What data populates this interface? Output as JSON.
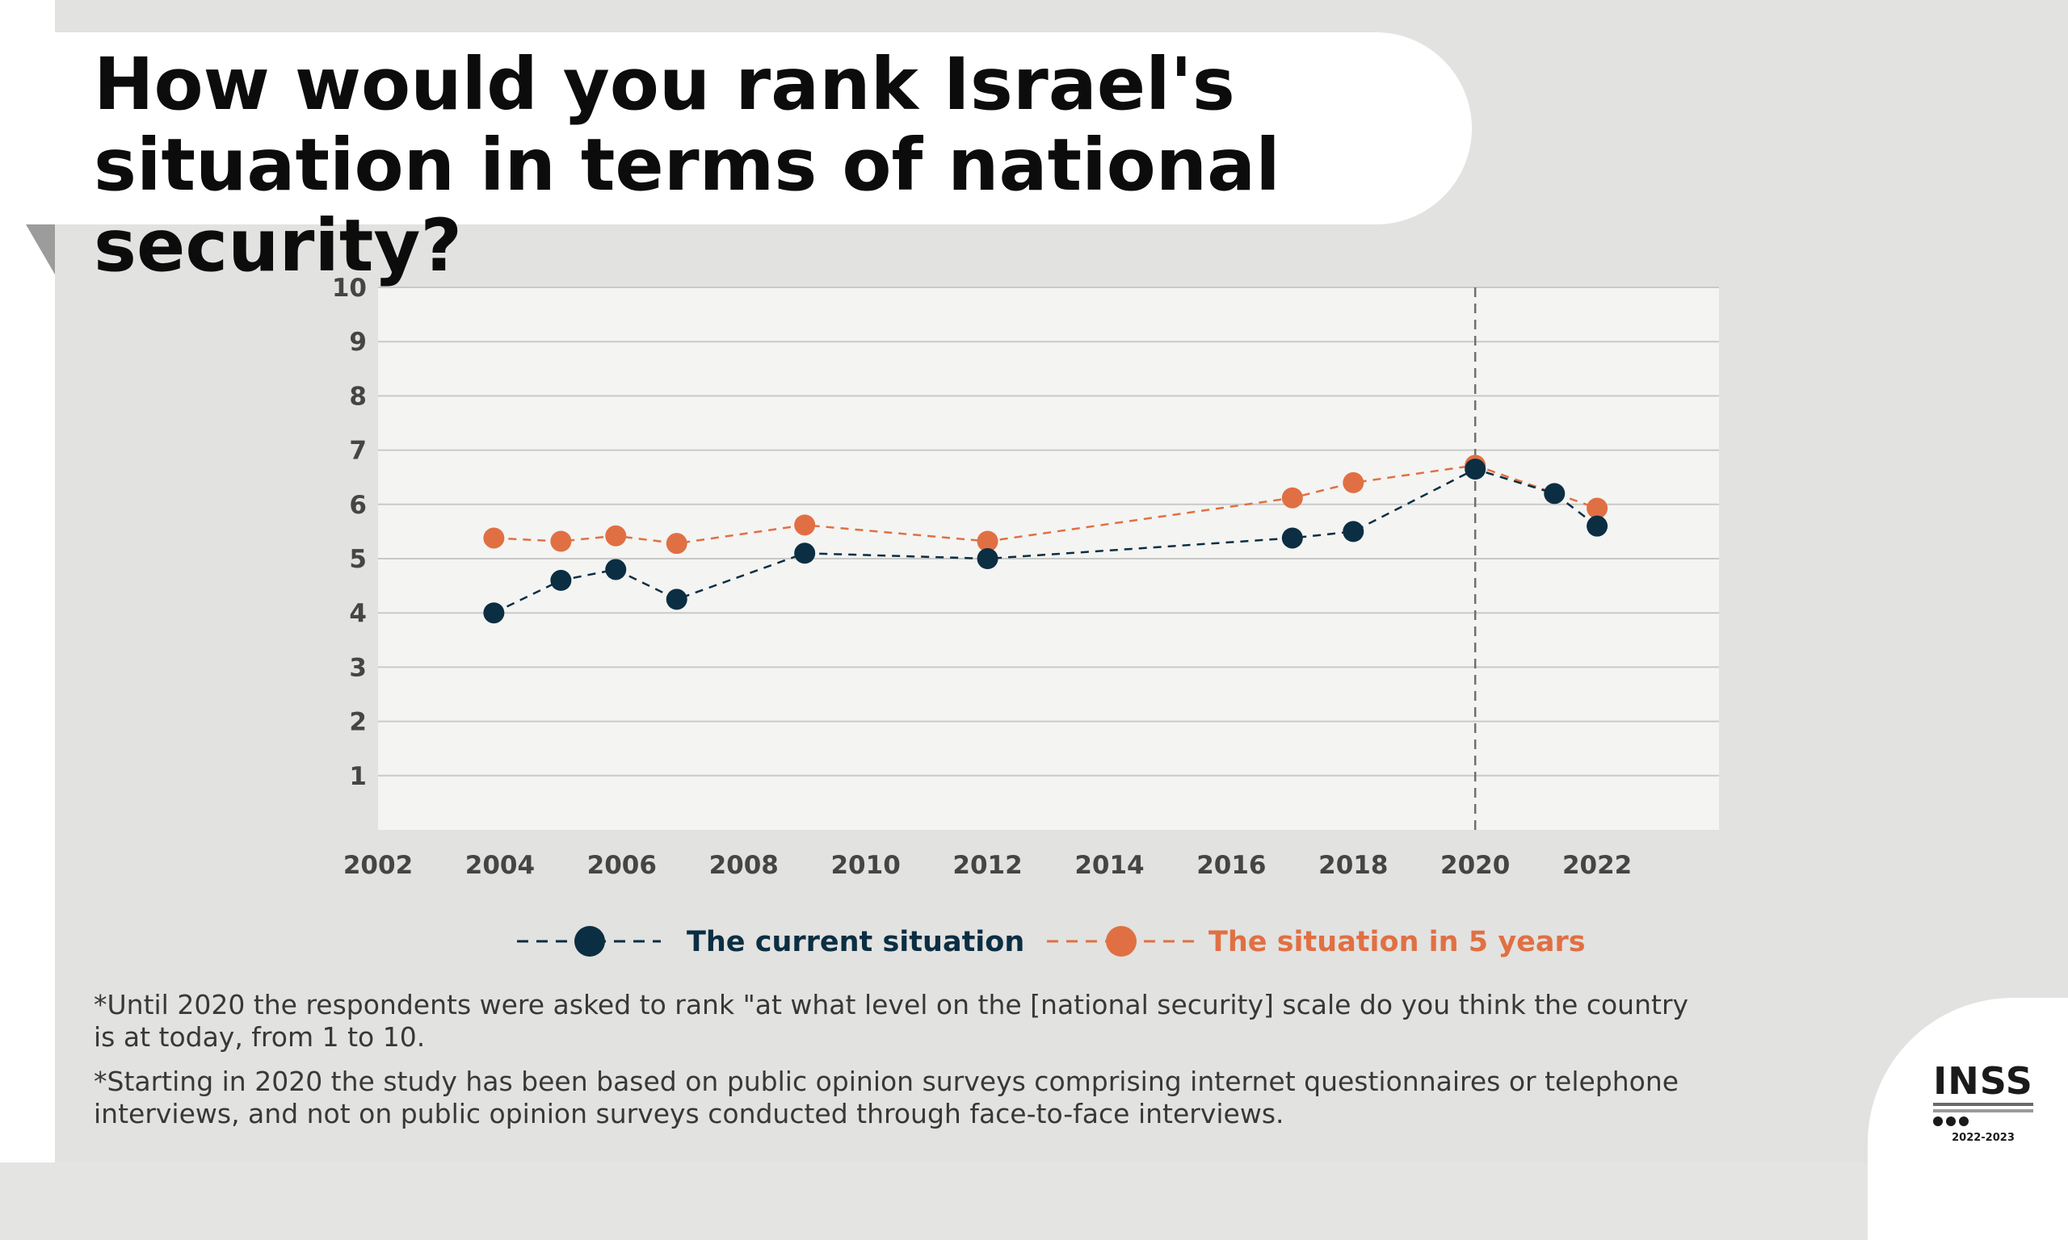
{
  "title": "How would you rank Israel's situation in terms of national security?",
  "notes": [
    "*Until 2020 the respondents were asked to rank \"at what level on the [national security] scale do you think the country is at today, from 1 to 10.",
    "*Starting in 2020 the study has been based on public opinion surveys comprising internet questionnaires or telephone interviews, and not on   public opinion surveys conducted through face-to-face interviews."
  ],
  "logo": {
    "name": "INSS",
    "years": "2022-2023"
  },
  "colors": {
    "current": "#0b2e43",
    "future": "#e07043",
    "marker_line": "#707070"
  },
  "chart_data": {
    "type": "line",
    "title": "How would you rank Israel's situation in terms of national security?",
    "xlabel": "",
    "ylabel": "",
    "xlim": [
      2002,
      2024
    ],
    "ylim": [
      0,
      10
    ],
    "x_ticks": [
      2002,
      2004,
      2006,
      2008,
      2010,
      2012,
      2014,
      2016,
      2018,
      2020,
      2022
    ],
    "y_ticks": [
      1,
      2,
      3,
      4,
      5,
      6,
      7,
      8,
      9,
      10
    ],
    "grid": true,
    "line_style": "dashed",
    "legend_position": "bottom",
    "vertical_marker_x": 2020,
    "series": [
      {
        "name": "The current situation",
        "color": "#0b2e43",
        "x": [
          2003.9,
          2005.0,
          2005.9,
          2006.9,
          2009.0,
          2012.0,
          2017.0,
          2018.0,
          2020.0,
          2021.3,
          2022.0
        ],
        "y": [
          4.0,
          4.6,
          4.8,
          4.25,
          5.1,
          5.0,
          5.38,
          5.5,
          6.65,
          6.2,
          5.6
        ]
      },
      {
        "name": "The situation in 5 years",
        "color": "#e07043",
        "x": [
          2003.9,
          2005.0,
          2005.9,
          2006.9,
          2009.0,
          2012.0,
          2017.0,
          2018.0,
          2020.0,
          2022.0
        ],
        "y": [
          5.38,
          5.32,
          5.42,
          5.28,
          5.62,
          5.32,
          6.12,
          6.4,
          6.72,
          5.93
        ]
      }
    ]
  }
}
